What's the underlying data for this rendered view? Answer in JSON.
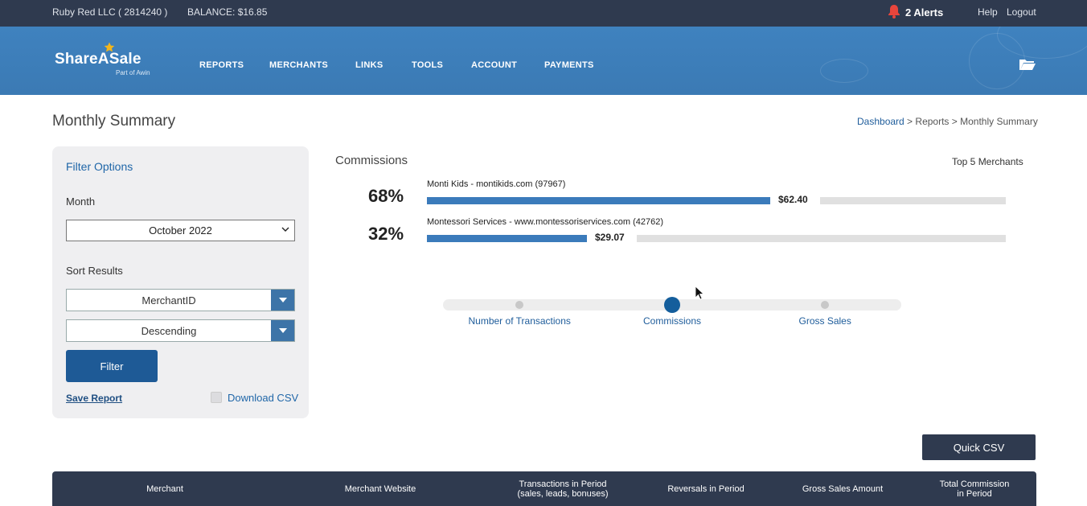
{
  "topbar": {
    "account": "Ruby Red LLC ( 2814240 )",
    "balance": "BALANCE: $16.85",
    "alerts": "2 Alerts",
    "help": "Help",
    "logout": "Logout"
  },
  "brand": {
    "name": "ShareASale",
    "sub": "Part of Awin"
  },
  "nav": [
    "REPORTS",
    "MERCHANTS",
    "LINKS",
    "TOOLS",
    "ACCOUNT",
    "PAYMENTS"
  ],
  "page": {
    "title": "Monthly Summary",
    "breadcrumb": {
      "home": "Dashboard",
      "sep1": " > ",
      "reports": "Reports",
      "sep2": " > ",
      "current": "Monthly Summary"
    }
  },
  "filter": {
    "title": "Filter Options",
    "month_label": "Month",
    "month_value": "October 2022",
    "sort_label": "Sort Results",
    "sort_field": "MerchantID",
    "sort_order": "Descending",
    "filter_button": "Filter",
    "save_report": "Save Report",
    "download_csv": "Download CSV"
  },
  "chart": {
    "title": "Commissions",
    "top_label": "Top 5 Merchants"
  },
  "chart_data": {
    "type": "bar",
    "title": "Commissions",
    "categories": [
      "Monti Kids - montikids.com (97967)",
      "Montessori Services - www.montessoriservices.com (42762)"
    ],
    "values": [
      62.4,
      29.07
    ],
    "percent_labels": [
      "68%",
      "32%"
    ],
    "value_labels": [
      "$62.40",
      "$29.07"
    ],
    "shares": [
      0.68,
      0.32
    ]
  },
  "toggle": {
    "options": [
      "Number of Transactions",
      "Commissions",
      "Gross Sales"
    ],
    "selected": "Commissions"
  },
  "quick_csv": "Quick CSV",
  "table": {
    "headers": [
      "Merchant",
      "Merchant Website",
      "Transactions in Period\n(sales, leads, bonuses)",
      "Reversals in Period",
      "Gross Sales Amount",
      "Total Commission\nin Period"
    ]
  },
  "colors": {
    "nav": "#3f82bf",
    "dark": "#2f3a4f",
    "accent": "#1e5a96",
    "bar": "#3b7bbb",
    "alert": "#e8453c"
  }
}
